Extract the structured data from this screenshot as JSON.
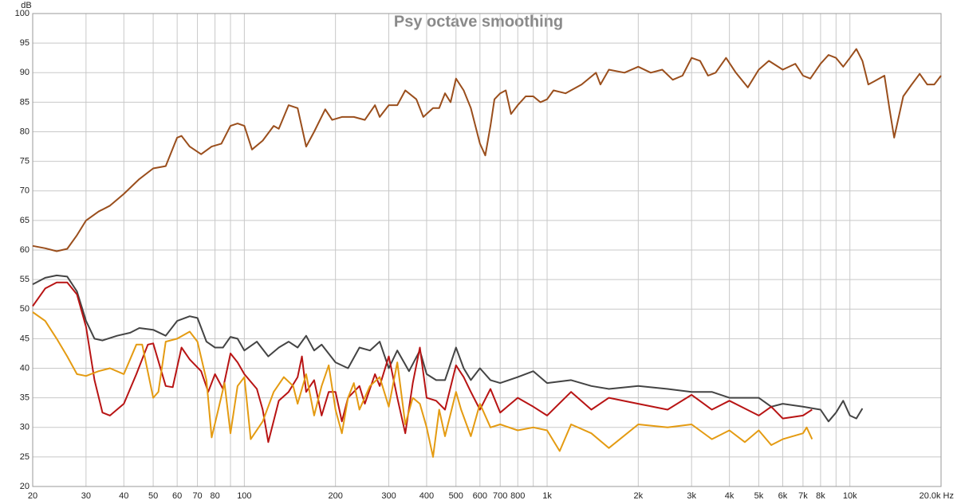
{
  "chart_data": {
    "type": "line",
    "title": "Psy octave smoothing",
    "ylabel": "dB",
    "xscale": "log",
    "grid": true,
    "xlim": [
      20,
      20000
    ],
    "ylim": [
      20,
      100
    ],
    "yticks": [
      20,
      25,
      30,
      35,
      40,
      45,
      50,
      55,
      60,
      65,
      70,
      75,
      80,
      85,
      90,
      95,
      100
    ],
    "xticks": [
      20,
      30,
      40,
      50,
      60,
      70,
      80,
      100,
      200,
      300,
      400,
      500,
      600,
      700,
      800,
      {
        "value": 1000,
        "label": "1k"
      },
      {
        "value": 2000,
        "label": "2k"
      },
      {
        "value": 3000,
        "label": "3k"
      },
      {
        "value": 4000,
        "label": "4k"
      },
      {
        "value": 5000,
        "label": "5k"
      },
      {
        "value": 6000,
        "label": "6k"
      },
      {
        "value": 7000,
        "label": "7k"
      },
      {
        "value": 8000,
        "label": "8k"
      },
      {
        "value": 10000,
        "label": "10k"
      },
      {
        "value": 20000,
        "label": "20.0k Hz"
      }
    ],
    "xminor_ticks": [
      90,
      900,
      9000
    ],
    "series": [
      {
        "color": "#9a4e1c",
        "x": [
          20,
          22,
          24,
          26,
          28,
          30,
          33,
          36,
          40,
          45,
          50,
          55,
          60,
          62,
          66,
          72,
          78,
          84,
          90,
          95,
          100,
          106,
          115,
          125,
          130,
          140,
          150,
          160,
          170,
          185,
          195,
          210,
          230,
          250,
          270,
          280,
          300,
          320,
          340,
          370,
          390,
          420,
          440,
          460,
          480,
          500,
          530,
          560,
          600,
          625,
          650,
          670,
          700,
          730,
          760,
          800,
          850,
          900,
          950,
          1000,
          1050,
          1150,
          1300,
          1450,
          1500,
          1600,
          1800,
          2000,
          2200,
          2400,
          2600,
          2800,
          3000,
          3200,
          3400,
          3600,
          3900,
          4200,
          4600,
          5000,
          5400,
          6000,
          6600,
          7000,
          7400,
          8000,
          8500,
          9000,
          9500,
          10000,
          10500,
          11000,
          11500,
          12000,
          13000,
          13500,
          14000,
          15000,
          16000,
          17000,
          18000,
          19000,
          20000
        ],
        "values": [
          60.7,
          60.3,
          59.8,
          60.2,
          62.5,
          65,
          66.5,
          67.5,
          69.5,
          72,
          73.8,
          74.2,
          79,
          79.3,
          77.5,
          76.2,
          77.5,
          78,
          81,
          81.4,
          81,
          77,
          78.5,
          81,
          80.5,
          84.5,
          84,
          77.5,
          80,
          83.8,
          82,
          82.5,
          82.5,
          82,
          84.5,
          82.5,
          84.5,
          84.5,
          87,
          85.5,
          82.5,
          84,
          84,
          86.5,
          85,
          89,
          87,
          84,
          78,
          76,
          81,
          85.5,
          86.5,
          87,
          83,
          84.5,
          86,
          86,
          85,
          85.5,
          87,
          86.5,
          88,
          90,
          88,
          90.5,
          90,
          91,
          90,
          90.5,
          88.8,
          89.5,
          92.5,
          92,
          89.5,
          90,
          92.5,
          90,
          87.5,
          90.5,
          92,
          90.5,
          91.5,
          89.5,
          89,
          91.5,
          93,
          92.5,
          91,
          92.5,
          94,
          92,
          88,
          88.5,
          89.5,
          84,
          79,
          86,
          88,
          89.8,
          88,
          88,
          89.5
        ]
      },
      {
        "color": "#444444",
        "x": [
          20,
          22,
          24,
          26,
          28,
          30,
          32,
          34,
          38,
          42,
          45,
          50,
          55,
          60,
          66,
          70,
          75,
          80,
          85,
          90,
          95,
          100,
          110,
          120,
          130,
          140,
          150,
          160,
          170,
          180,
          200,
          220,
          240,
          260,
          280,
          300,
          320,
          350,
          380,
          400,
          430,
          460,
          500,
          530,
          560,
          600,
          650,
          700,
          800,
          900,
          1000,
          1200,
          1400,
          1600,
          2000,
          2500,
          3000,
          3500,
          4000,
          5000,
          5500,
          6000,
          7000,
          8000,
          8500,
          9000,
          9500,
          10000,
          10500,
          11000
        ],
        "values": [
          54.2,
          55.3,
          55.7,
          55.5,
          53,
          48,
          45,
          44.7,
          45.5,
          46,
          46.8,
          46.5,
          45.5,
          48,
          48.8,
          48.5,
          44.5,
          43.5,
          43.5,
          45.3,
          45,
          43,
          44.5,
          42,
          43.5,
          44.5,
          43.5,
          45.5,
          43,
          44,
          41,
          40,
          43.5,
          43,
          44.5,
          40,
          43,
          39.5,
          43,
          39,
          38,
          38,
          43.5,
          40,
          38,
          40,
          38,
          37.5,
          38.5,
          39.5,
          37.5,
          38,
          37,
          36.5,
          37,
          36.5,
          36,
          36,
          35,
          35,
          33.5,
          34,
          33.5,
          33,
          31,
          32.5,
          34.5,
          32,
          31.5,
          33.2
        ]
      },
      {
        "color": "#b81414",
        "x": [
          20,
          22,
          24,
          26,
          28,
          30,
          32,
          34,
          36,
          40,
          44,
          48,
          50,
          55,
          58,
          62,
          66,
          72,
          76,
          80,
          85,
          90,
          95,
          100,
          110,
          115,
          120,
          130,
          140,
          150,
          155,
          160,
          170,
          180,
          190,
          200,
          210,
          220,
          240,
          250,
          270,
          280,
          300,
          320,
          340,
          360,
          380,
          400,
          430,
          460,
          500,
          530,
          560,
          600,
          650,
          700,
          800,
          900,
          1000,
          1200,
          1400,
          1600,
          2000,
          2500,
          3000,
          3500,
          4000,
          5000,
          5500,
          6000,
          7000,
          7500
        ],
        "values": [
          50.5,
          53.5,
          54.5,
          54.5,
          52.5,
          47,
          38,
          32.5,
          32,
          34,
          39,
          44,
          44.2,
          37,
          36.8,
          43.5,
          41.5,
          39.5,
          36,
          39,
          36.5,
          42.5,
          41,
          39,
          36.5,
          33,
          27.5,
          34.5,
          36,
          38.5,
          42,
          36,
          38,
          32,
          36,
          36,
          31,
          35,
          37,
          34,
          39,
          37,
          42,
          35,
          29,
          37.5,
          43.5,
          35,
          34.5,
          33,
          40.5,
          38.5,
          36,
          33,
          36.5,
          32.5,
          35,
          33.5,
          32,
          36,
          33,
          35,
          34,
          33,
          35.5,
          33,
          34.5,
          32,
          33.5,
          31.5,
          32,
          33
        ]
      },
      {
        "color": "#e49b12",
        "x": [
          20,
          22,
          24,
          26,
          28,
          30,
          33,
          36,
          40,
          44,
          46,
          50,
          52,
          55,
          60,
          66,
          70,
          75,
          78,
          82,
          86,
          90,
          95,
          100,
          105,
          115,
          125,
          135,
          145,
          150,
          160,
          170,
          180,
          190,
          200,
          210,
          220,
          230,
          240,
          260,
          280,
          300,
          320,
          340,
          360,
          380,
          400,
          420,
          440,
          460,
          500,
          520,
          560,
          600,
          650,
          700,
          800,
          900,
          1000,
          1100,
          1200,
          1400,
          1600,
          2000,
          2500,
          3000,
          3500,
          4000,
          4500,
          5000,
          5500,
          6000,
          7000,
          7200,
          7500
        ],
        "values": [
          49.5,
          48,
          45,
          42,
          39,
          38.7,
          39.5,
          40,
          39,
          44,
          44,
          35,
          36,
          44.5,
          45,
          46.2,
          44.5,
          38,
          28.3,
          33,
          37.5,
          29,
          37,
          38.5,
          28,
          31,
          36,
          38.5,
          37,
          34,
          39,
          32,
          37,
          40.5,
          33,
          29,
          35,
          37.5,
          33,
          37,
          38.5,
          33.5,
          41,
          30.5,
          35,
          34,
          30,
          25,
          33,
          28.5,
          36,
          33,
          28.5,
          34,
          30,
          30.5,
          29.5,
          30,
          29.5,
          26,
          30.5,
          29,
          26.5,
          30.5,
          30,
          30.5,
          28,
          29.5,
          27.5,
          29.5,
          27,
          28,
          29,
          30,
          28
        ]
      }
    ]
  }
}
